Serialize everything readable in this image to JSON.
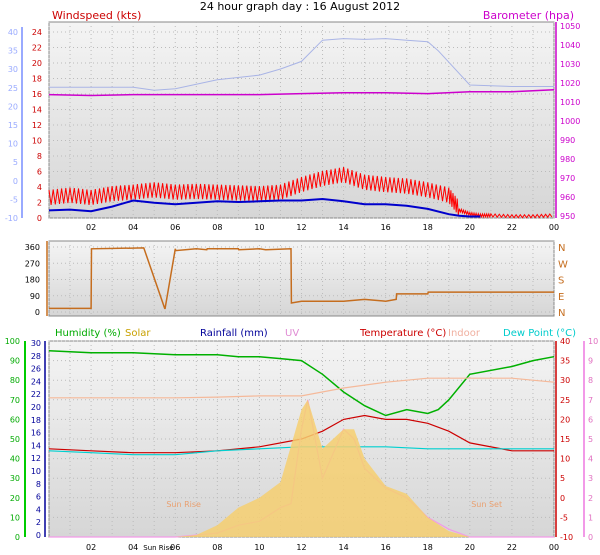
{
  "chart_data": [
    {
      "type": "line",
      "title": "24 hour graph day : 16 August 2012",
      "left_axis_label": "Windspeed (kts)",
      "right_axis_label": "Barometer (hpa)",
      "x_ticks": [
        "02",
        "04",
        "06",
        "08",
        "10",
        "12",
        "14",
        "16",
        "18",
        "20",
        "22",
        "00"
      ],
      "left_ticks_red": [
        "24",
        "22",
        "20",
        "18",
        "16",
        "14",
        "12",
        "10",
        "8",
        "6",
        "4",
        "2",
        "0"
      ],
      "left_ticks_blue": [
        "40",
        "35",
        "30",
        "25",
        "20",
        "15",
        "10",
        "5",
        "0",
        "-5",
        "-10"
      ],
      "right_ticks": [
        "1050",
        "1040",
        "1030",
        "1020",
        "1010",
        "1000",
        "990",
        "980",
        "970",
        "960",
        "950"
      ],
      "ylim_wind": [
        0,
        25
      ],
      "ylim_baro": [
        948,
        1052
      ],
      "series": [
        {
          "id": "gust",
          "color": "#ff0000",
          "x": [
            0,
            1,
            2,
            3,
            4,
            5,
            6,
            7,
            8,
            9,
            10,
            11,
            12,
            13,
            14,
            15,
            16,
            17,
            18,
            19,
            19.5,
            20,
            20.5,
            21,
            22,
            23,
            24
          ],
          "y": [
            2.5,
            2.8,
            2.5,
            3,
            3.2,
            3.5,
            3.2,
            3.3,
            3.2,
            3.1,
            3,
            3.2,
            4.2,
            5,
            5.5,
            4.5,
            4.2,
            4,
            3.5,
            2.8,
            1,
            0.5,
            0.3,
            0.3,
            0.2,
            0.2,
            0.3
          ]
        },
        {
          "id": "avg",
          "color": "#0000cc",
          "x": [
            0,
            1,
            2,
            3,
            4,
            5,
            6,
            7,
            8,
            9,
            10,
            11,
            12,
            13,
            14,
            15,
            16,
            17,
            18,
            19,
            19.5,
            20,
            20.5
          ],
          "y": [
            1,
            1.1,
            0.9,
            1.5,
            2.3,
            2,
            1.8,
            2,
            2.2,
            2.1,
            2.2,
            2.3,
            2.3,
            2.5,
            2.2,
            1.8,
            1.8,
            1.6,
            1.2,
            0.5,
            0.3,
            0.2,
            0.2
          ]
        },
        {
          "id": "barometer",
          "color": "#cc00cc",
          "x": [
            0,
            2,
            4,
            6,
            8,
            10,
            12,
            14,
            16,
            18,
            20,
            22,
            24
          ],
          "y": [
            1013.5,
            1013,
            1013.5,
            1013.5,
            1013.5,
            1013.5,
            1014,
            1014.5,
            1014.5,
            1014,
            1015,
            1015,
            1016
          ]
        },
        {
          "id": "wind_avg_light",
          "color": "#a9b4e6",
          "x": [
            0,
            2,
            4,
            5,
            6,
            8,
            10,
            11,
            12,
            13,
            14,
            15,
            16,
            17,
            18,
            18.5,
            19,
            20,
            22,
            24
          ],
          "y": [
            17.2,
            17.2,
            17.2,
            16.8,
            17,
            18.2,
            18.8,
            19.6,
            20.6,
            23.4,
            23.6,
            23.5,
            23.6,
            23.4,
            23.2,
            22,
            20.5,
            17.5,
            17.3,
            17.3
          ]
        }
      ]
    },
    {
      "type": "line",
      "title": "",
      "left_ticks": [
        "360",
        "270",
        "180",
        "90",
        "0"
      ],
      "right_labels": [
        "N",
        "W",
        "S",
        "E",
        "N"
      ],
      "x_ticks": [],
      "ylim": [
        0,
        360
      ],
      "series": [
        {
          "id": "wind_direction",
          "color": "#c56d1e",
          "x": [
            0,
            2.0,
            2.02,
            4.5,
            4.52,
            5.5,
            5.52,
            6.0,
            6.02,
            7,
            7.5,
            7.52,
            9.0,
            9.02,
            10,
            10.3,
            11.5,
            11.52,
            12,
            13,
            14,
            15,
            16,
            16.5,
            16.52,
            18,
            18.02,
            24
          ],
          "y": [
            20,
            20,
            350,
            355,
            350,
            20,
            20,
            350,
            340,
            350,
            345,
            350,
            350,
            345,
            350,
            345,
            350,
            50,
            60,
            60,
            60,
            70,
            60,
            70,
            100,
            100,
            110,
            110
          ]
        }
      ]
    },
    {
      "type": "line",
      "title": "",
      "legend": [
        "Humidity (%)",
        "Solar",
        "Rainfall (mm)",
        "UV",
        "Temperature (°C)",
        "Indoor",
        "Dew Point (°C)"
      ],
      "legend_colors": [
        "#00aa00",
        "#c8a000",
        "#000099",
        "#e08bd4",
        "#cc0000",
        "#f0b0a0",
        "#00cccc"
      ],
      "x_ticks": [
        "02",
        "04",
        "Sun Rise",
        "06",
        "08",
        "10",
        "12",
        "14",
        "16",
        "18",
        "20",
        "22",
        "00"
      ],
      "left_ticks_humidity": [
        "100",
        "90",
        "80",
        "70",
        "60",
        "50",
        "40",
        "30",
        "20",
        "10",
        "0"
      ],
      "left_ticks_rain": [
        "30",
        "28",
        "26",
        "24",
        "22",
        "20",
        "18",
        "16",
        "14",
        "12",
        "10",
        "8",
        "6",
        "4",
        "2",
        "0"
      ],
      "right_ticks_temp": [
        "40",
        "35",
        "30",
        "25",
        "20",
        "15",
        "10",
        "5",
        "0",
        "-5",
        "-10"
      ],
      "right_ticks_uv": [
        "10",
        "9",
        "8",
        "7",
        "6",
        "5",
        "4",
        "3",
        "2",
        "1",
        "0"
      ],
      "annotations": [
        "Sun Rise",
        "Sun Set"
      ],
      "ylim_temp": [
        -10,
        40
      ],
      "series": [
        {
          "id": "humidity",
          "color": "#00b000",
          "x": [
            0,
            2,
            4,
            6,
            8,
            9,
            10,
            11,
            12,
            13,
            14,
            15,
            16,
            17,
            18,
            18.5,
            19,
            20,
            22,
            23,
            24
          ],
          "y": [
            95,
            94,
            94,
            93,
            93,
            92,
            92,
            91,
            90,
            83,
            74,
            67,
            62,
            65,
            63,
            65,
            70,
            83,
            87,
            90,
            92
          ]
        },
        {
          "id": "indoor",
          "color": "#f5b99a",
          "x": [
            0,
            2,
            4,
            6,
            8,
            10,
            12,
            14,
            16,
            18,
            20,
            22,
            24
          ],
          "y": [
            25.5,
            25.5,
            25.5,
            25.5,
            25.7,
            26,
            26,
            28,
            29.5,
            30.5,
            30.5,
            30.5,
            29.5
          ]
        },
        {
          "id": "temperature",
          "color": "#cc0000",
          "x": [
            0,
            2,
            4,
            6,
            8,
            10,
            12,
            13,
            14,
            15,
            16,
            17,
            18,
            19,
            20,
            22,
            24
          ],
          "y": [
            12.5,
            12,
            11.5,
            11.5,
            12,
            13,
            15,
            17,
            20,
            21,
            20,
            20,
            19,
            17,
            14,
            12,
            12
          ]
        },
        {
          "id": "dew_point",
          "color": "#00d0d0",
          "x": [
            0,
            2,
            4,
            6,
            8,
            10,
            12,
            14,
            16,
            18,
            20,
            22,
            24
          ],
          "y": [
            12,
            11.5,
            11,
            11,
            12,
            12.5,
            13,
            13,
            13,
            12.5,
            12.5,
            12.5,
            12.5
          ]
        },
        {
          "id": "uv",
          "color": "#f29ae8",
          "x": [
            0,
            6,
            8,
            9,
            10,
            11,
            11.5,
            12,
            12.3,
            13,
            14,
            14.5,
            15,
            16,
            17,
            18,
            19,
            20,
            24
          ],
          "y": [
            0,
            0,
            0.2,
            0.6,
            0.8,
            1.5,
            1.7,
            5.5,
            7,
            3,
            5.5,
            5,
            3.5,
            2.5,
            2,
            1,
            0.4,
            0,
            0
          ]
        },
        {
          "id": "solar",
          "color": "#f6cf70",
          "x": [
            0,
            6,
            7,
            8,
            9,
            10,
            11,
            12,
            12.3,
            13,
            14,
            14.5,
            15,
            16,
            17,
            18,
            19,
            20,
            24
          ],
          "y": [
            0,
            0,
            0.1,
            0.6,
            1.5,
            2,
            2.8,
            6.5,
            7,
            4.5,
            5.5,
            5.5,
            4,
            2.6,
            2.2,
            1,
            0.3,
            0,
            0
          ]
        }
      ]
    }
  ]
}
